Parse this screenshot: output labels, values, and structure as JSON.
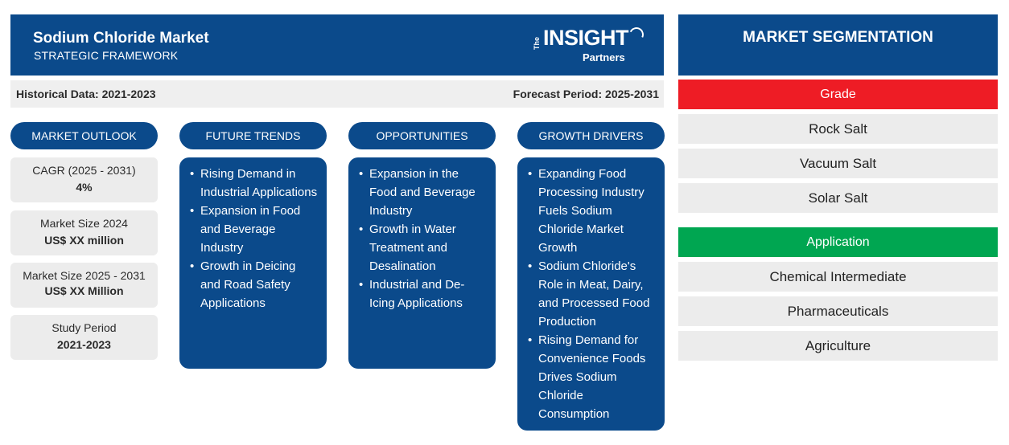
{
  "header": {
    "title": "Sodium Chloride Market",
    "subtitle": "STRATEGIC FRAMEWORK",
    "logo": {
      "the": "The",
      "insight": "INSIGHT",
      "partners": "Partners"
    }
  },
  "data_bar": {
    "historical": "Historical Data: 2021-2023",
    "forecast": "Forecast Period: 2025-2031"
  },
  "columns": {
    "outlook": {
      "title": "MARKET OUTLOOK"
    },
    "trends": {
      "title": "FUTURE TRENDS",
      "items": [
        "Rising Demand in Industrial Applications",
        "Expansion in Food and Beverage Industry",
        "Growth in Deicing and Road Safety Applications"
      ]
    },
    "opportunities": {
      "title": "OPPORTUNITIES",
      "items": [
        "Expansion in the Food and Beverage Industry",
        "Growth in Water Treatment and Desalination",
        "Industrial and De-Icing Applications"
      ]
    },
    "drivers": {
      "title": "GROWTH DRIVERS",
      "items": [
        "Expanding Food Processing Industry Fuels Sodium Chloride Market Growth",
        "Sodium Chloride's Role in Meat, Dairy, and Processed Food Production",
        "Rising Demand for Convenience Foods Drives Sodium Chloride Consumption"
      ]
    }
  },
  "outlook": [
    {
      "label": "CAGR (2025 - 2031)",
      "value": "4%"
    },
    {
      "label": "Market Size 2024",
      "value": "US$ XX million"
    },
    {
      "label": "Market Size 2025 - 2031",
      "value": "US$ XX Million"
    },
    {
      "label": "Study Period",
      "value": "2021-2023"
    }
  ],
  "segmentation": {
    "title": "MARKET SEGMENTATION",
    "groups": [
      {
        "name": "Grade",
        "color": "#ee1c25",
        "items": [
          "Rock Salt",
          "Vacuum Salt",
          "Solar Salt"
        ]
      },
      {
        "name": "Application",
        "color": "#00a651",
        "items": [
          "Chemical Intermediate",
          "Pharmaceuticals",
          "Agriculture"
        ]
      }
    ]
  },
  "colors": {
    "primary": "#0b4a8b",
    "panel": "#ececec"
  }
}
